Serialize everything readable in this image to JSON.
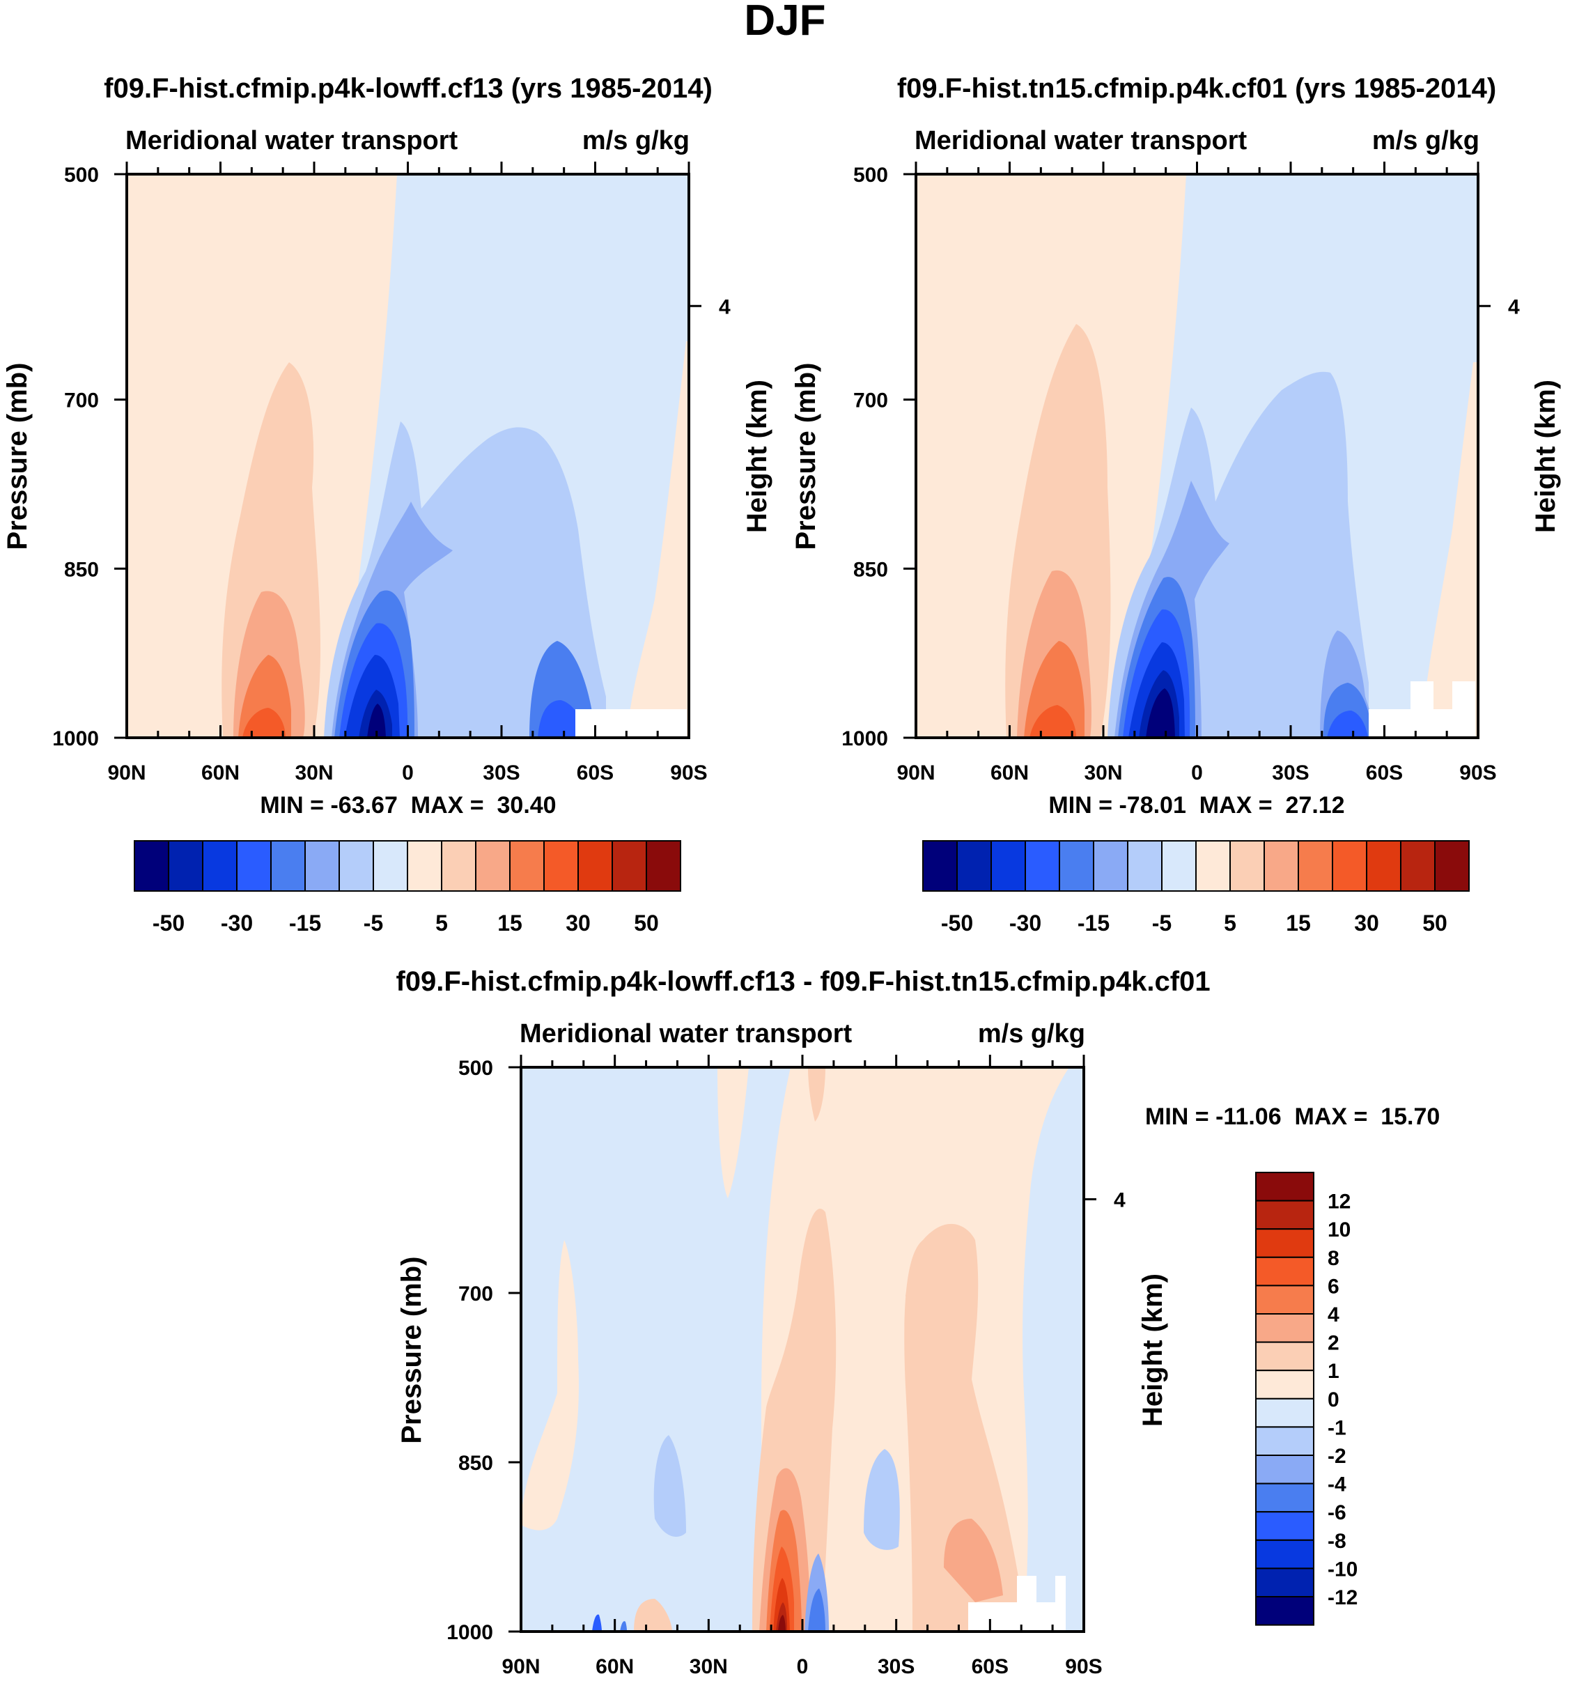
{
  "figure": {
    "title": "DJF"
  },
  "colors": {
    "cb1": [
      "#00007a",
      "#0022b0",
      "#0839e0",
      "#2a5cff",
      "#4a7ef0",
      "#8aaaf5",
      "#b4cdfa",
      "#d8e8fb",
      "#fee9d8",
      "#fbcfb5",
      "#f8a888",
      "#f67c4c",
      "#f45a28",
      "#e03a10",
      "#b82510",
      "#8a0b0b"
    ],
    "cb2": [
      "#00007a",
      "#0022b0",
      "#0839e0",
      "#2a5cff",
      "#4a7ef0",
      "#8aaaf5",
      "#b4cdfa",
      "#d8e8fb",
      "#fee9d8",
      "#fbcfb5",
      "#f8a888",
      "#f67c4c",
      "#f45a28",
      "#e03a10",
      "#b82510",
      "#8a0b0b"
    ]
  },
  "chart_data": [
    {
      "type": "contour",
      "title": "f09.F-hist.cfmip.p4k-lowff.cf13 (yrs 1985-2014)",
      "subtitle_left": "Meridional water transport",
      "subtitle_right": "m/s g/kg",
      "ylabel": "Pressure (mb)",
      "y2label": "Height (km)",
      "x_ticks": [
        "90N",
        "60N",
        "30N",
        "0",
        "30S",
        "60S",
        "90S"
      ],
      "y_ticks": [
        "500",
        "700",
        "850",
        "1000"
      ],
      "y2_ticks": [
        "4"
      ],
      "ylim": [
        1000,
        500
      ],
      "stats": "MIN = -63.67  MAX =  30.40",
      "colorbar_labels": [
        "-50",
        "-30",
        "-15",
        "-5",
        "5",
        "15",
        "30",
        "50"
      ],
      "min": -63.67,
      "max": 30.4
    },
    {
      "type": "contour",
      "title": "f09.F-hist.tn15.cfmip.p4k.cf01 (yrs 1985-2014)",
      "subtitle_left": "Meridional water transport",
      "subtitle_right": "m/s g/kg",
      "ylabel": "Pressure (mb)",
      "y2label": "Height (km)",
      "x_ticks": [
        "90N",
        "60N",
        "30N",
        "0",
        "30S",
        "60S",
        "90S"
      ],
      "y_ticks": [
        "500",
        "700",
        "850",
        "1000"
      ],
      "y2_ticks": [
        "4"
      ],
      "ylim": [
        1000,
        500
      ],
      "stats": "MIN = -78.01  MAX =  27.12",
      "colorbar_labels": [
        "-50",
        "-30",
        "-15",
        "-5",
        "5",
        "15",
        "30",
        "50"
      ],
      "min": -78.01,
      "max": 27.12
    },
    {
      "type": "contour",
      "title": "f09.F-hist.cfmip.p4k-lowff.cf13 - f09.F-hist.tn15.cfmip.p4k.cf01",
      "subtitle_left": "Meridional water transport",
      "subtitle_right": "m/s g/kg",
      "ylabel": "Pressure (mb)",
      "y2label": "Height (km)",
      "x_ticks": [
        "90N",
        "60N",
        "30N",
        "0",
        "30S",
        "60S",
        "90S"
      ],
      "y_ticks": [
        "500",
        "700",
        "850",
        "1000"
      ],
      "y2_ticks": [
        "4"
      ],
      "ylim": [
        1000,
        500
      ],
      "stats": "MIN = -11.06  MAX =  15.70",
      "colorbar_labels": [
        "12",
        "10",
        "8",
        "6",
        "4",
        "2",
        "1",
        "0",
        "-1",
        "-2",
        "-4",
        "-6",
        "-8",
        "-10",
        "-12"
      ],
      "min": -11.06,
      "max": 15.7
    }
  ]
}
